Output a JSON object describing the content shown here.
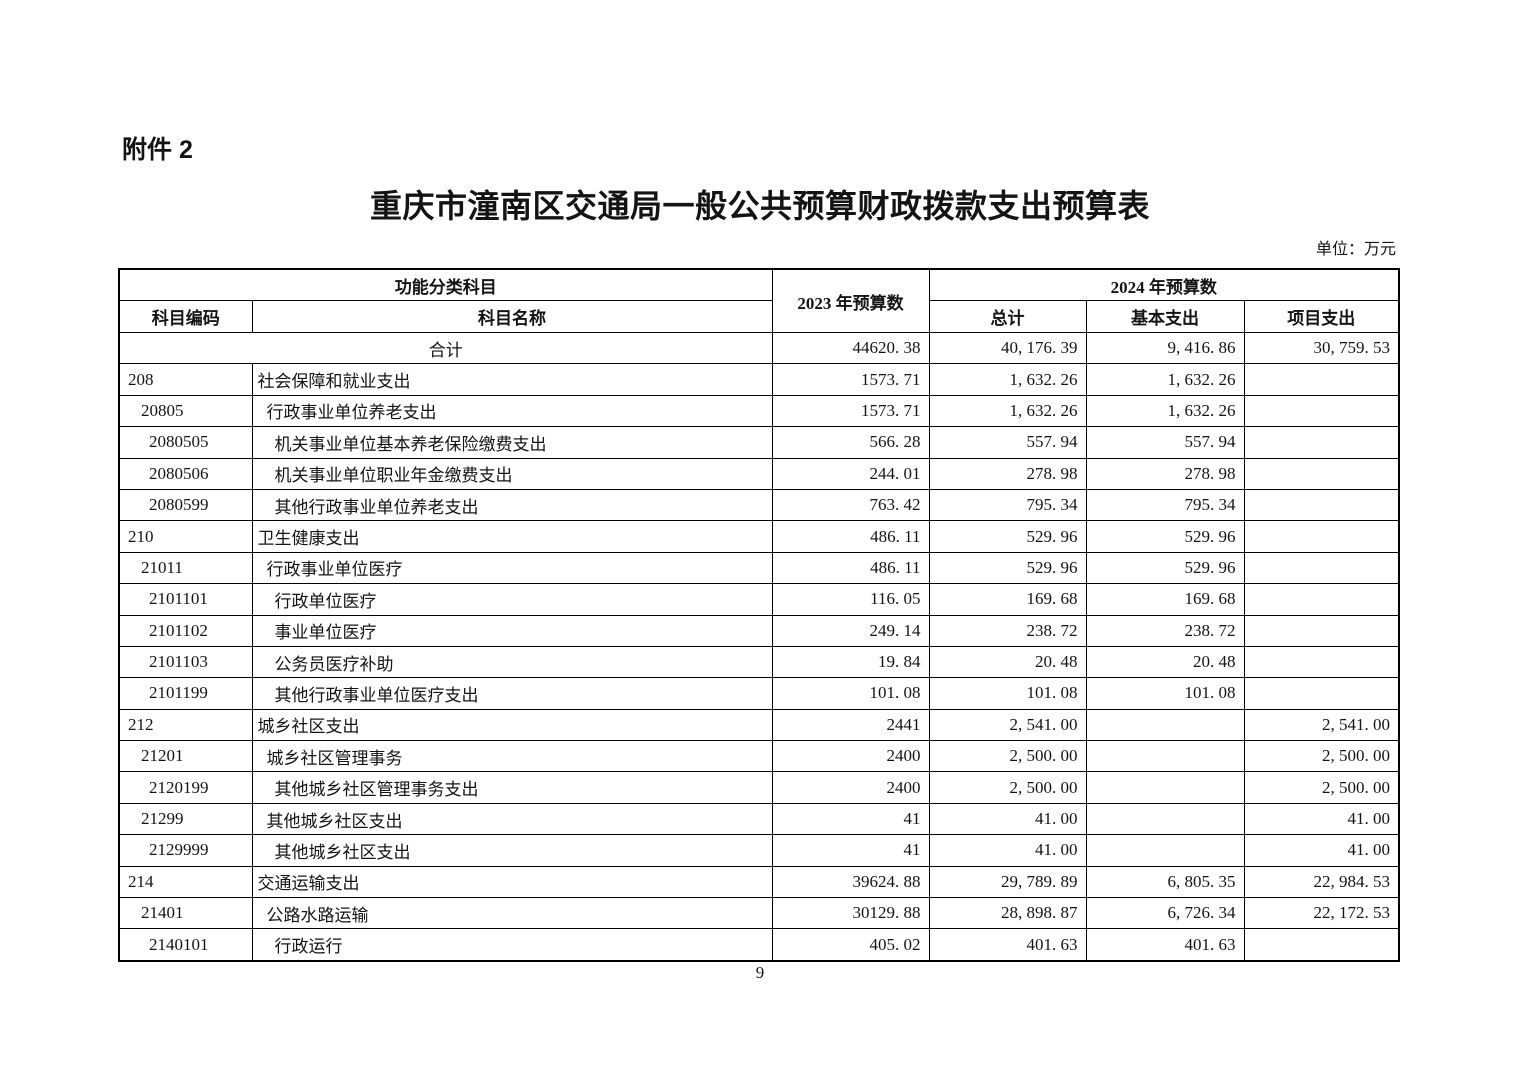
{
  "page": {
    "attachment": "附件 2",
    "title": "重庆市潼南区交通局一般公共预算财政拨款支出预算表",
    "unit_note": "单位：万元",
    "page_number": "9"
  },
  "table": {
    "header": {
      "function_group": "功能分类科目",
      "code": "科目编码",
      "name": "科目名称",
      "y2023": "2023 年预算数",
      "y2024": "2024 年预算数",
      "total": "总计",
      "basic": "基本支出",
      "project": "项目支出"
    },
    "rows": [
      {
        "merged": true,
        "code": "",
        "name": "合计",
        "level": 0,
        "v2023": "44620. 38",
        "total": "40, 176. 39",
        "basic": "9, 416. 86",
        "project": "30, 759. 53"
      },
      {
        "code": "208",
        "name": "社会保障和就业支出",
        "level": 0,
        "v2023": "1573. 71",
        "total": "1, 632. 26",
        "basic": "1, 632. 26",
        "project": ""
      },
      {
        "code": "20805",
        "name": "行政事业单位养老支出",
        "level": 1,
        "v2023": "1573. 71",
        "total": "1, 632. 26",
        "basic": "1, 632. 26",
        "project": ""
      },
      {
        "code": "2080505",
        "name": "机关事业单位基本养老保险缴费支出",
        "level": 2,
        "v2023": "566. 28",
        "total": "557. 94",
        "basic": "557. 94",
        "project": ""
      },
      {
        "code": "2080506",
        "name": "机关事业单位职业年金缴费支出",
        "level": 2,
        "v2023": "244. 01",
        "total": "278. 98",
        "basic": "278. 98",
        "project": ""
      },
      {
        "code": "2080599",
        "name": "其他行政事业单位养老支出",
        "level": 2,
        "v2023": "763. 42",
        "total": "795. 34",
        "basic": "795. 34",
        "project": ""
      },
      {
        "code": "210",
        "name": "卫生健康支出",
        "level": 0,
        "v2023": "486. 11",
        "total": "529. 96",
        "basic": "529. 96",
        "project": ""
      },
      {
        "code": "21011",
        "name": "行政事业单位医疗",
        "level": 1,
        "v2023": "486. 11",
        "total": "529. 96",
        "basic": "529. 96",
        "project": ""
      },
      {
        "code": "2101101",
        "name": "行政单位医疗",
        "level": 2,
        "v2023": "116. 05",
        "total": "169. 68",
        "basic": "169. 68",
        "project": ""
      },
      {
        "code": "2101102",
        "name": "事业单位医疗",
        "level": 2,
        "v2023": "249. 14",
        "total": "238. 72",
        "basic": "238. 72",
        "project": ""
      },
      {
        "code": "2101103",
        "name": "公务员医疗补助",
        "level": 2,
        "v2023": "19. 84",
        "total": "20. 48",
        "basic": "20. 48",
        "project": ""
      },
      {
        "code": "2101199",
        "name": "其他行政事业单位医疗支出",
        "level": 2,
        "v2023": "101. 08",
        "total": "101. 08",
        "basic": "101. 08",
        "project": ""
      },
      {
        "code": "212",
        "name": "城乡社区支出",
        "level": 0,
        "v2023": "2441",
        "total": "2, 541. 00",
        "basic": "",
        "project": "2, 541. 00"
      },
      {
        "code": "21201",
        "name": "城乡社区管理事务",
        "level": 1,
        "v2023": "2400",
        "total": "2, 500. 00",
        "basic": "",
        "project": "2, 500. 00"
      },
      {
        "code": "2120199",
        "name": "其他城乡社区管理事务支出",
        "level": 2,
        "v2023": "2400",
        "total": "2, 500. 00",
        "basic": "",
        "project": "2, 500. 00"
      },
      {
        "code": "21299",
        "name": "其他城乡社区支出",
        "level": 1,
        "v2023": "41",
        "total": "41. 00",
        "basic": "",
        "project": "41. 00"
      },
      {
        "code": "2129999",
        "name": "其他城乡社区支出",
        "level": 2,
        "v2023": "41",
        "total": "41. 00",
        "basic": "",
        "project": "41. 00"
      },
      {
        "code": "214",
        "name": "交通运输支出",
        "level": 0,
        "v2023": "39624. 88",
        "total": "29, 789. 89",
        "basic": "6, 805. 35",
        "project": "22, 984. 53"
      },
      {
        "code": "21401",
        "name": "公路水路运输",
        "level": 1,
        "v2023": "30129. 88",
        "total": "28, 898. 87",
        "basic": "6, 726. 34",
        "project": "22, 172. 53"
      },
      {
        "code": "2140101",
        "name": "行政运行",
        "level": 2,
        "v2023": "405. 02",
        "total": "401. 63",
        "basic": "401. 63",
        "project": ""
      }
    ]
  }
}
